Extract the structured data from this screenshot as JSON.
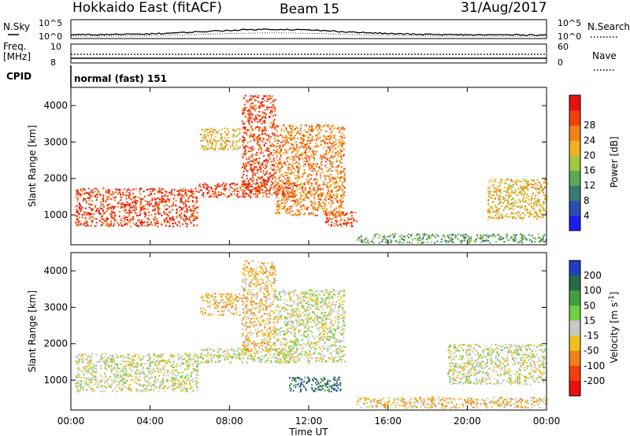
{
  "header": {
    "station": "Hokkaido East (fitACF)",
    "beam": "Beam 15",
    "date": "31/Aug/2017"
  },
  "top_panels": {
    "nsky_label": "N.Sky",
    "nsearch_label": "N.Search",
    "noise_tick_top": "10^5",
    "noise_tick_bottom": "10^0",
    "freq_label": "Freq.",
    "freq_unit": "[MHz]",
    "freq_tick_top": "10",
    "freq_tick_bottom": "8",
    "nave_label": "Nave",
    "nave_tick_top": "60",
    "nave_tick_bottom": "0",
    "cpid_label": "CPID",
    "cpid_value": "normal (fast) 151"
  },
  "chart_data": [
    {
      "type": "heatmap",
      "title": "",
      "xlabel": "",
      "ylabel": "Slant Range [km]",
      "x_ticks": [
        "00:00",
        "04:00",
        "08:00",
        "12:00",
        "16:00",
        "20:00",
        "00:00"
      ],
      "xlim_hours": [
        0,
        24
      ],
      "y_ticks": [
        1000,
        2000,
        3000,
        4000
      ],
      "ylim": [
        180,
        4500
      ],
      "colorbar": {
        "label": "Power [dB]",
        "ticks": [
          4,
          8,
          12,
          16,
          20,
          24,
          28
        ],
        "range": [
          0,
          30
        ],
        "colors": [
          "#1c1cf0",
          "#2a4fb0",
          "#3a7a70",
          "#5aa858",
          "#a0c840",
          "#f0b020",
          "#f08018",
          "#f04010",
          "#e81010"
        ]
      },
      "regions": [
        {
          "t": [
            0.2,
            6.4
          ],
          "r": [
            700,
            1750
          ],
          "value": 25
        },
        {
          "t": [
            6.4,
            11.4
          ],
          "r": [
            1500,
            1900
          ],
          "value": 26
        },
        {
          "t": [
            6.5,
            8.5
          ],
          "r": [
            2800,
            3400
          ],
          "value": 19
        },
        {
          "t": [
            8.6,
            10.3
          ],
          "r": [
            1600,
            4300
          ],
          "value": 27
        },
        {
          "t": [
            10.3,
            13.8
          ],
          "r": [
            1000,
            3500
          ],
          "value": 21
        },
        {
          "t": [
            12.8,
            14.4
          ],
          "r": [
            700,
            1100
          ],
          "value": 27
        },
        {
          "t": [
            14.4,
            24.0
          ],
          "r": [
            250,
            500
          ],
          "value": 13
        },
        {
          "t": [
            21.0,
            24.0
          ],
          "r": [
            900,
            2000
          ],
          "value": 17
        }
      ]
    },
    {
      "type": "heatmap",
      "title": "",
      "xlabel": "Time UT",
      "ylabel": "Slant Range [km]",
      "x_ticks": [
        "00:00",
        "04:00",
        "08:00",
        "12:00",
        "16:00",
        "20:00",
        "00:00"
      ],
      "xlim_hours": [
        0,
        24
      ],
      "y_ticks": [
        1000,
        2000,
        3000,
        4000
      ],
      "ylim": [
        180,
        4500
      ],
      "colorbar": {
        "label": "Velocity [m s^-1]",
        "ticks": [
          200,
          100,
          50,
          15,
          -15,
          -50,
          -100,
          -200
        ],
        "colors": [
          "#2040c0",
          "#2a6a48",
          "#40a040",
          "#70d040",
          "#c8c8c8",
          "#f0c020",
          "#f08018",
          "#f04010",
          "#e81010"
        ]
      },
      "regions": [
        {
          "t": [
            0.2,
            6.4
          ],
          "r": [
            700,
            1750
          ],
          "value": 0
        },
        {
          "t": [
            6.4,
            11.4
          ],
          "r": [
            1500,
            1900
          ],
          "value": 0
        },
        {
          "t": [
            6.5,
            8.5
          ],
          "r": [
            2800,
            3400
          ],
          "value": -40
        },
        {
          "t": [
            8.6,
            10.3
          ],
          "r": [
            1800,
            4300
          ],
          "value": -40
        },
        {
          "t": [
            10.3,
            13.8
          ],
          "r": [
            1500,
            3500
          ],
          "value": 0
        },
        {
          "t": [
            11.0,
            13.6
          ],
          "r": [
            700,
            1100
          ],
          "value": 120
        },
        {
          "t": [
            14.4,
            24.0
          ],
          "r": [
            250,
            550
          ],
          "value": -40
        },
        {
          "t": [
            19.0,
            24.0
          ],
          "r": [
            900,
            2000
          ],
          "value": 0
        }
      ]
    }
  ]
}
